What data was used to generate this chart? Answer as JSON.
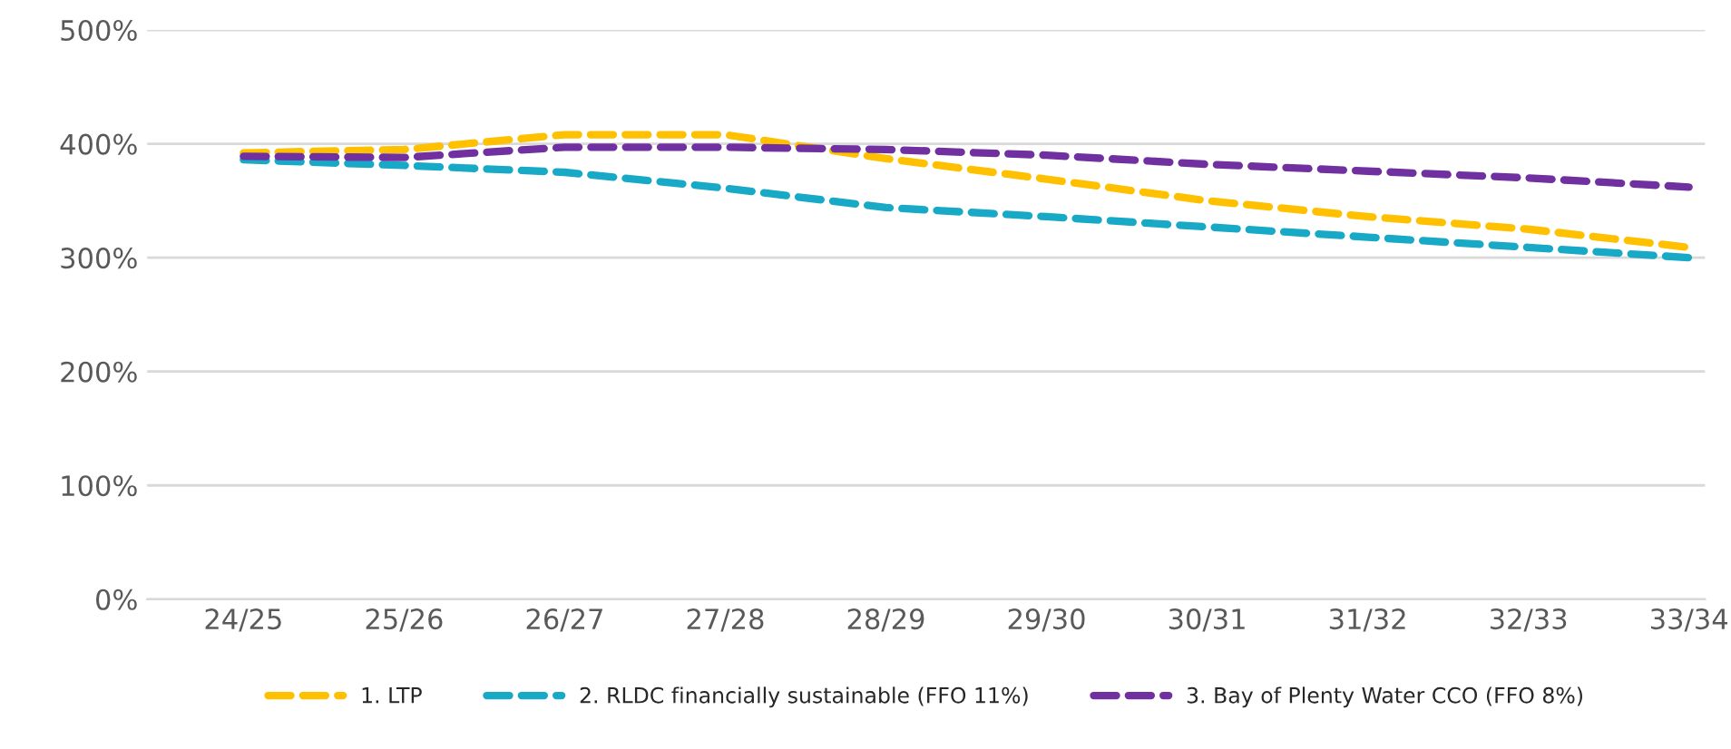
{
  "chart_data": {
    "type": "line",
    "categories": [
      "24/25",
      "25/26",
      "26/27",
      "27/28",
      "28/29",
      "29/30",
      "30/31",
      "31/32",
      "32/33",
      "33/34"
    ],
    "series": [
      {
        "name": "1. LTP",
        "color": "#ffc000",
        "values": [
          392,
          395,
          408,
          408,
          387,
          369,
          350,
          336,
          325,
          309
        ]
      },
      {
        "name": "2. RLDC financially sustainable (FFO 11%)",
        "color": "#17a9c5",
        "values": [
          386,
          381,
          375,
          361,
          344,
          336,
          327,
          318,
          309,
          300
        ]
      },
      {
        "name": "3. Bay of Plenty Water CCO (FFO 8%)",
        "color": "#7030a0",
        "values": [
          389,
          388,
          397,
          397,
          395,
          390,
          382,
          376,
          370,
          362
        ]
      }
    ],
    "ylim": [
      0,
      500
    ],
    "yticks": [
      {
        "value": 0,
        "label": "0%"
      },
      {
        "value": 100,
        "label": "100%"
      },
      {
        "value": 200,
        "label": "200%"
      },
      {
        "value": 300,
        "label": "300%"
      },
      {
        "value": 400,
        "label": "400%"
      },
      {
        "value": 500,
        "label": "500%"
      }
    ],
    "grid": "y",
    "legend": "bottom",
    "line_style": "dashed",
    "marker": "none"
  }
}
